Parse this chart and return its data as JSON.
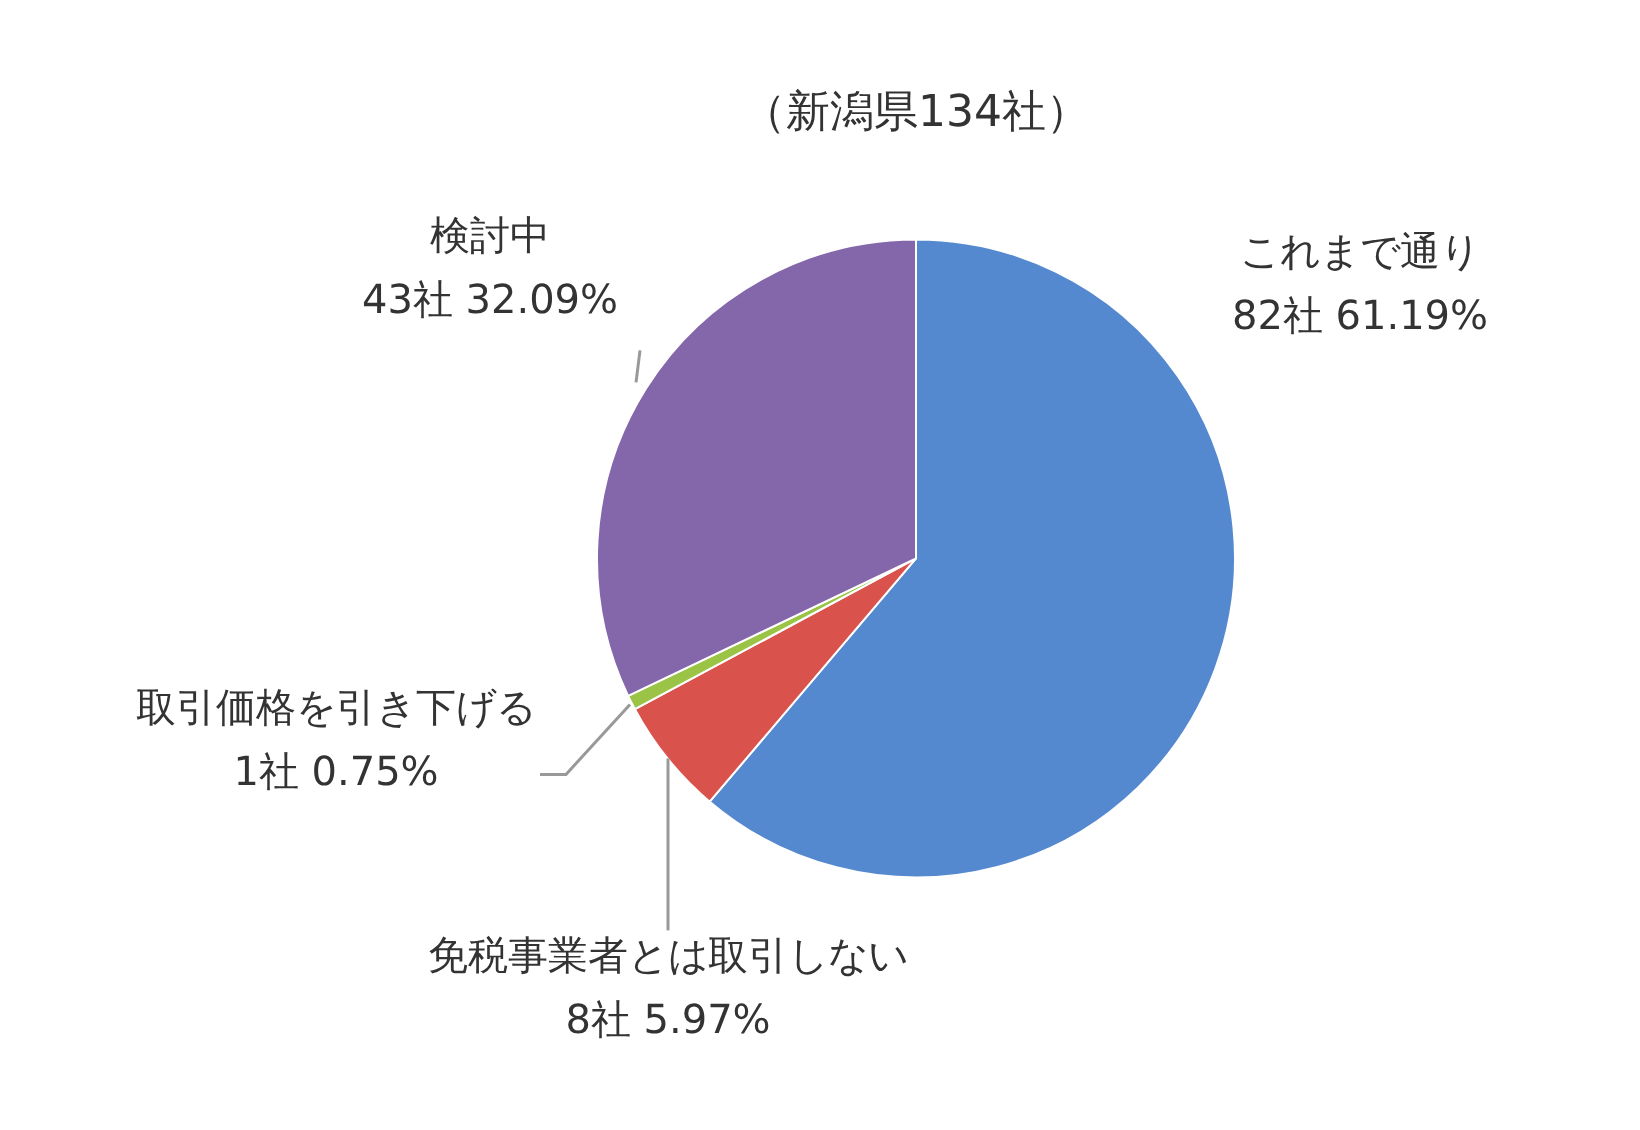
{
  "chart_data": {
    "type": "pie",
    "title": "（新潟県134社）",
    "categories": [
      "これまで通り",
      "免税事業者とは取引しない",
      "取引価格を引き下げる",
      "検討中"
    ],
    "values": [
      82,
      8,
      1,
      43
    ],
    "colors": [
      "#5589cf",
      "#d9534c",
      "#9bc447",
      "#8466ab"
    ],
    "value_labels": [
      "82社 61.19%",
      "8社 5.97%",
      "1社 0.75%",
      "43社 32.09%"
    ]
  }
}
